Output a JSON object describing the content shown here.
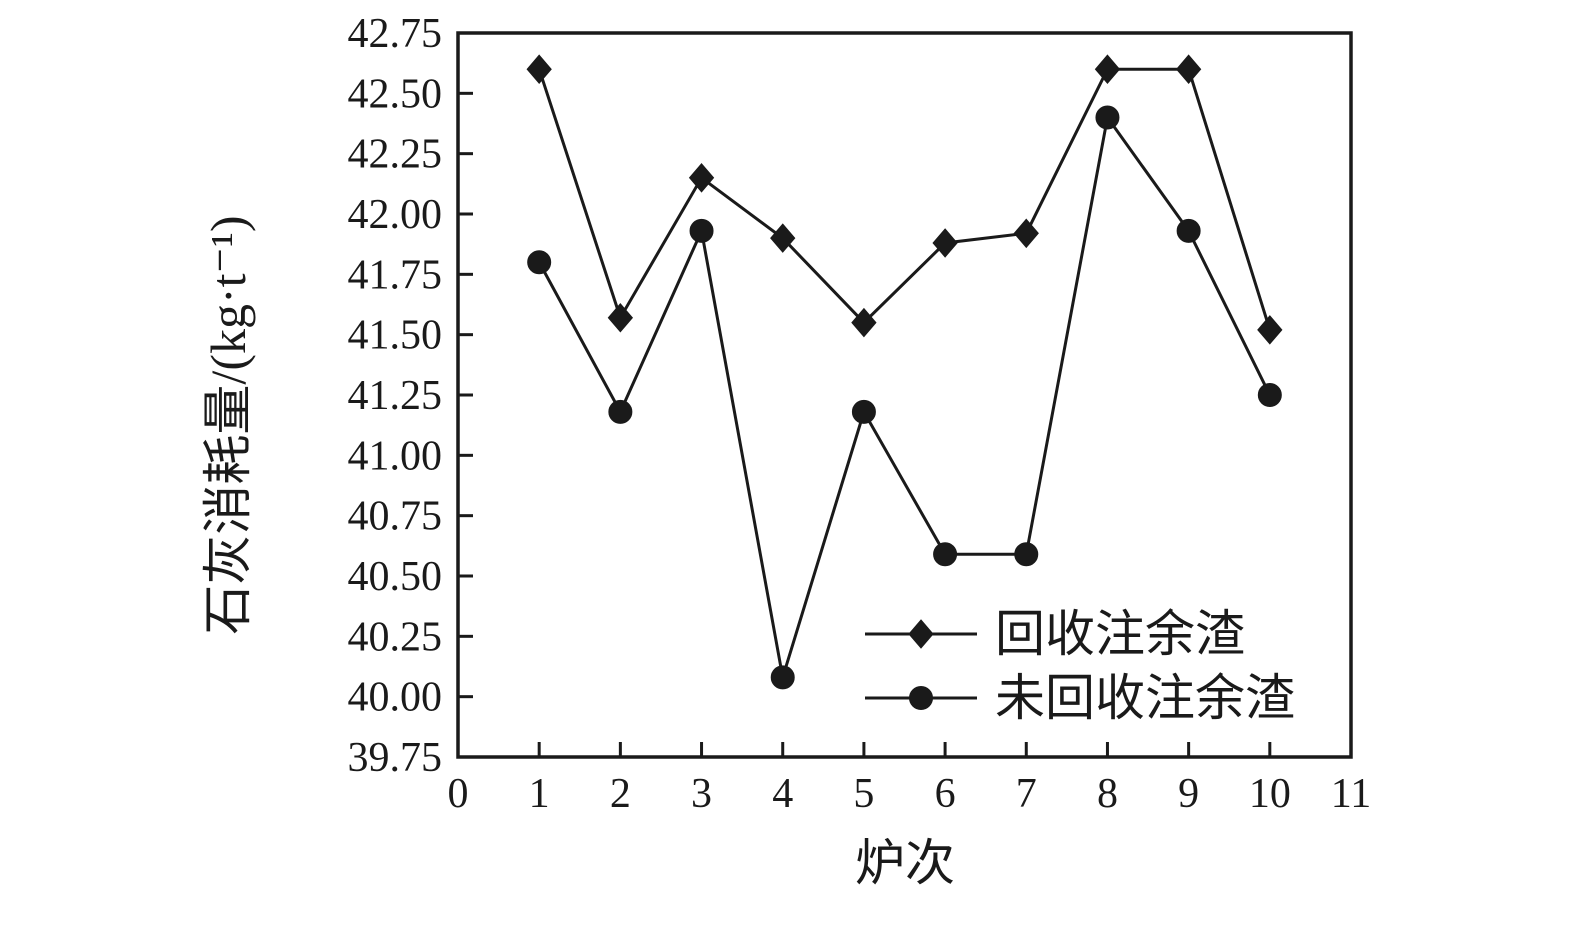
{
  "figure": {
    "background": "#ffffff",
    "ink_color": "#1a1a1a"
  },
  "chart_data": {
    "type": "line",
    "title": "",
    "xlabel": "炉次",
    "ylabel": "石灰消耗量/(kg·t⁻¹)",
    "xlim": [
      0,
      11
    ],
    "ylim": [
      39.75,
      42.75
    ],
    "xtick_labels": [
      "0",
      "1",
      "2",
      "3",
      "4",
      "5",
      "6",
      "7",
      "8",
      "9",
      "10",
      "11"
    ],
    "ytick_labels": [
      "39.75",
      "40.00",
      "40.25",
      "40.50",
      "40.75",
      "41.00",
      "41.25",
      "41.50",
      "41.75",
      "42.00",
      "42.25",
      "42.50",
      "42.75"
    ],
    "x": [
      1,
      2,
      3,
      4,
      5,
      6,
      7,
      8,
      9,
      10
    ],
    "series": [
      {
        "name": "回收注余渣",
        "marker": "diamond",
        "color": "#1a1a1a",
        "values": [
          42.6,
          41.57,
          42.15,
          41.9,
          41.55,
          41.88,
          41.92,
          42.6,
          42.6,
          41.52
        ]
      },
      {
        "name": "未回收注余渣",
        "marker": "circle",
        "color": "#1a1a1a",
        "values": [
          41.8,
          41.18,
          41.93,
          40.08,
          41.18,
          40.59,
          40.59,
          42.4,
          41.93,
          41.25
        ]
      }
    ],
    "legend": {
      "position": "inside-bottom-center-right",
      "entries": [
        "回收注余渣",
        "未回收注余渣"
      ]
    },
    "grid": false
  }
}
